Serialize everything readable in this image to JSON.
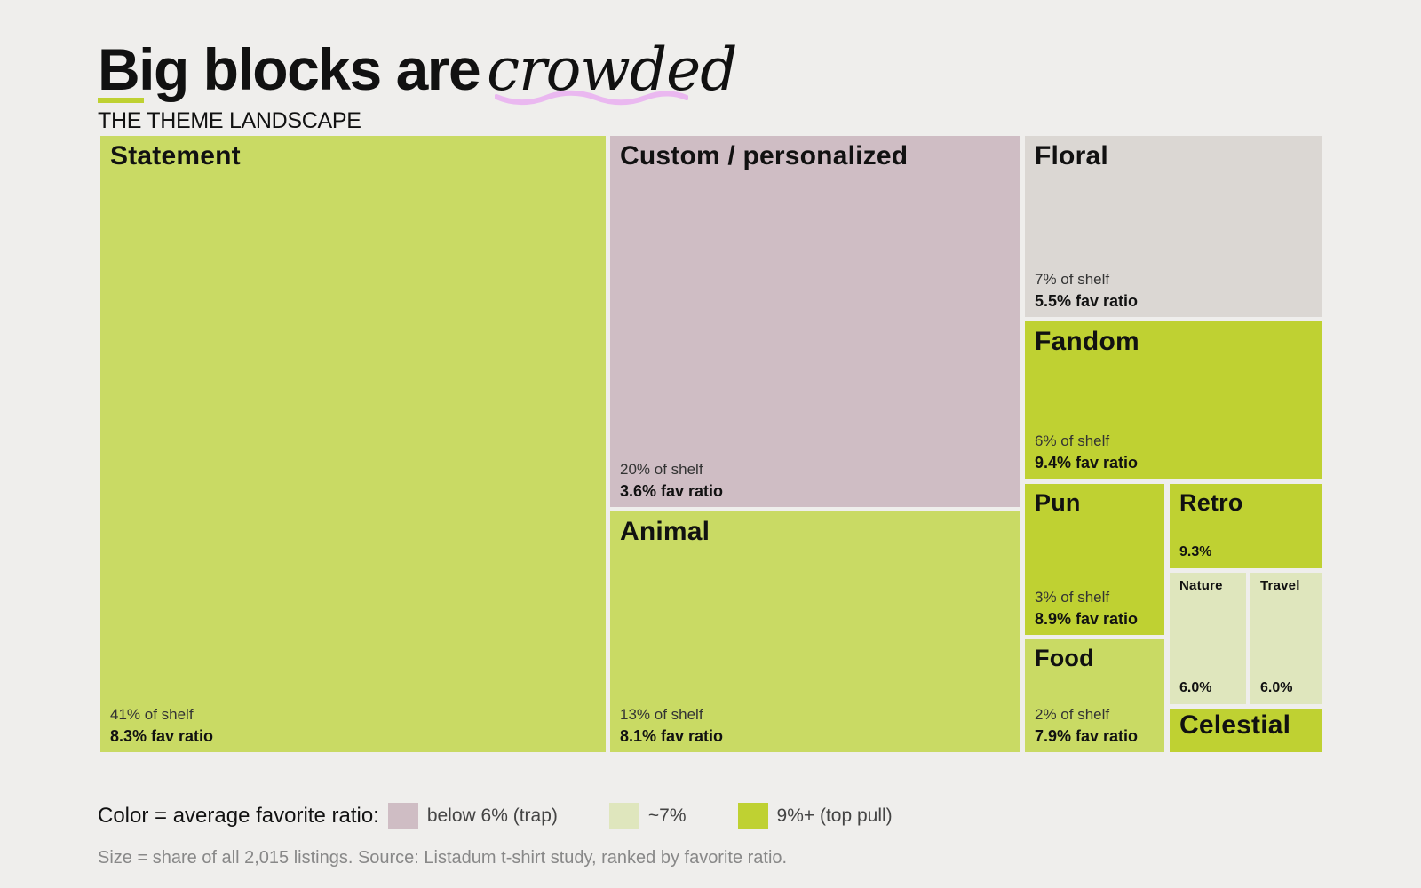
{
  "header": {
    "title_main": "Big blocks are",
    "title_emph": "crowded",
    "subtitle": "THE THEME LANDSCAPE"
  },
  "colors": {
    "trap": "#cfbdc4",
    "mid": "#dfe6bd",
    "high_light": "#c9da64",
    "high": "#bfd132",
    "neutral": "#dbd7d3",
    "accent_underline": "#bfd132",
    "accent_squiggle": "#eab8f0"
  },
  "chart_data": {
    "type": "treemap",
    "title": "Big blocks are crowded",
    "subtitle": "THE THEME LANDSCAPE",
    "nodes": [
      {
        "name": "Statement",
        "share_label": "41% of shelf",
        "ratio_label": "8.3% fav ratio",
        "share": 41,
        "fav_ratio": 8.3
      },
      {
        "name": "Custom / personalized",
        "share_label": "20% of shelf",
        "ratio_label": "3.6% fav ratio",
        "share": 20,
        "fav_ratio": 3.6
      },
      {
        "name": "Animal",
        "share_label": "13% of shelf",
        "ratio_label": "8.1% fav ratio",
        "share": 13,
        "fav_ratio": 8.1
      },
      {
        "name": "Floral",
        "share_label": "7% of shelf",
        "ratio_label": "5.5% fav ratio",
        "share": 7,
        "fav_ratio": 5.5
      },
      {
        "name": "Fandom",
        "share_label": "6% of shelf",
        "ratio_label": "9.4% fav ratio",
        "share": 6,
        "fav_ratio": 9.4
      },
      {
        "name": "Pun",
        "share_label": "3% of shelf",
        "ratio_label": "8.9% fav ratio",
        "share": 3,
        "fav_ratio": 8.9
      },
      {
        "name": "Food",
        "share_label": "2% of shelf",
        "ratio_label": "7.9% fav ratio",
        "share": 2,
        "fav_ratio": 7.9
      },
      {
        "name": "Retro",
        "share_label": "",
        "ratio_label": "9.3%",
        "fav_ratio": 9.3
      },
      {
        "name": "Nature",
        "share_label": "",
        "ratio_label": "6.0%",
        "fav_ratio": 6.0
      },
      {
        "name": "Travel",
        "share_label": "",
        "ratio_label": "6.0%",
        "fav_ratio": 6.0
      },
      {
        "name": "Celestial",
        "share_label": "",
        "ratio_label": ""
      }
    ],
    "legend": {
      "label": "Color = average favorite ratio:",
      "items": [
        {
          "label": "below 6% (trap)",
          "color": "#cfbdc4"
        },
        {
          "label": "~7%",
          "color": "#dfe6bd"
        },
        {
          "label": "9%+ (top pull)",
          "color": "#bfd132"
        }
      ]
    },
    "footnote": "Size = share of all 2,015 listings. Source: Listadum t-shirt study, ranked by favorite ratio."
  }
}
